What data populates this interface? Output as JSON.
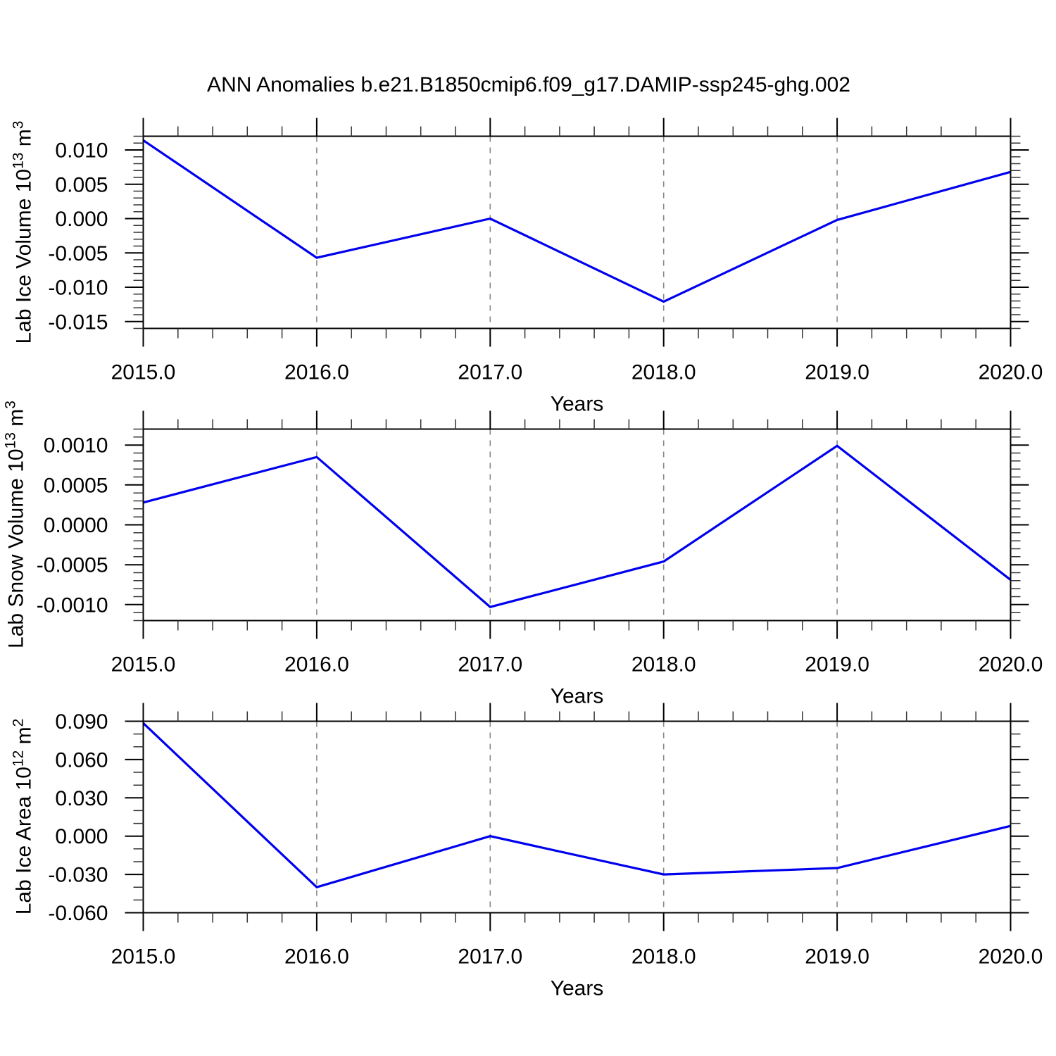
{
  "title": "ANN Anomalies b.e21.B1850cmip6.f09_g17.DAMIP-ssp245-ghg.002",
  "line_color": "#0000ee",
  "grid_color": "#888888",
  "frame_color": "#000000",
  "chart_data": [
    {
      "type": "line",
      "name": "lab-ice-volume",
      "ylabel_parts": {
        "base": "Lab Ice Volume 10",
        "exp": "13",
        "unit": " m",
        "unit_exp": "3"
      },
      "xlabel": "Years",
      "x": [
        2015.0,
        2016.0,
        2017.0,
        2018.0,
        2019.0,
        2020.0
      ],
      "values": [
        0.0114,
        -0.0057,
        0.0,
        -0.0121,
        -0.0002,
        0.0068
      ],
      "xlim": [
        2015.0,
        2020.0
      ],
      "ylim": [
        -0.016,
        0.012
      ],
      "xticks": [
        2015.0,
        2016.0,
        2017.0,
        2018.0,
        2019.0,
        2020.0
      ],
      "xtick_labels": [
        "2015.0",
        "2016.0",
        "2017.0",
        "2018.0",
        "2019.0",
        "2020.0"
      ],
      "yticks": [
        0.01,
        0.005,
        0.0,
        -0.005,
        -0.01,
        -0.015
      ],
      "ytick_labels": [
        "0.010",
        "0.005",
        "0.000",
        "-0.005",
        "-0.010",
        "-0.015"
      ],
      "x_minor_step": 0.2,
      "y_minor_step": 0.001,
      "grid_x": [
        2016.0,
        2017.0,
        2018.0,
        2019.0
      ],
      "grid_style": "dashed"
    },
    {
      "type": "line",
      "name": "lab-snow-volume",
      "ylabel_parts": {
        "base": "Lab Snow Volume 10",
        "exp": "13",
        "unit": " m",
        "unit_exp": "3"
      },
      "xlabel": "Years",
      "x": [
        2015.0,
        2016.0,
        2017.0,
        2018.0,
        2019.0,
        2020.0
      ],
      "values": [
        0.00028,
        0.00085,
        -0.00103,
        -0.00046,
        0.00099,
        -0.00069
      ],
      "xlim": [
        2015.0,
        2020.0
      ],
      "ylim": [
        -0.0012,
        0.0012
      ],
      "xticks": [
        2015.0,
        2016.0,
        2017.0,
        2018.0,
        2019.0,
        2020.0
      ],
      "xtick_labels": [
        "2015.0",
        "2016.0",
        "2017.0",
        "2018.0",
        "2019.0",
        "2020.0"
      ],
      "yticks": [
        0.001,
        0.0005,
        0.0,
        -0.0005,
        -0.001
      ],
      "ytick_labels": [
        "0.0010",
        "0.0005",
        "0.0000",
        "-0.0005",
        "-0.0010"
      ],
      "x_minor_step": 0.2,
      "y_minor_step": 0.0001,
      "grid_x": [
        2016.0,
        2017.0,
        2018.0,
        2019.0
      ],
      "grid_style": "dashed"
    },
    {
      "type": "line",
      "name": "lab-ice-area",
      "ylabel_parts": {
        "base": "Lab Ice Area 10",
        "exp": "12",
        "unit": " m",
        "unit_exp": "2"
      },
      "xlabel": "Years",
      "x": [
        2015.0,
        2016.0,
        2017.0,
        2018.0,
        2019.0,
        2020.0
      ],
      "values": [
        0.0885,
        -0.04,
        0.0,
        -0.03,
        -0.025,
        0.008
      ],
      "xlim": [
        2015.0,
        2020.0
      ],
      "ylim": [
        -0.06,
        0.09
      ],
      "xticks": [
        2015.0,
        2016.0,
        2017.0,
        2018.0,
        2019.0,
        2020.0
      ],
      "xtick_labels": [
        "2015.0",
        "2016.0",
        "2017.0",
        "2018.0",
        "2019.0",
        "2020.0"
      ],
      "yticks": [
        0.09,
        0.06,
        0.03,
        0.0,
        -0.03,
        -0.06
      ],
      "ytick_labels": [
        "0.090",
        "0.060",
        "0.030",
        "0.000",
        "-0.030",
        "-0.060"
      ],
      "x_minor_step": 0.2,
      "y_minor_step": 0.01,
      "grid_x": [
        2016.0,
        2017.0,
        2018.0,
        2019.0
      ],
      "grid_style": "dashed"
    }
  ]
}
